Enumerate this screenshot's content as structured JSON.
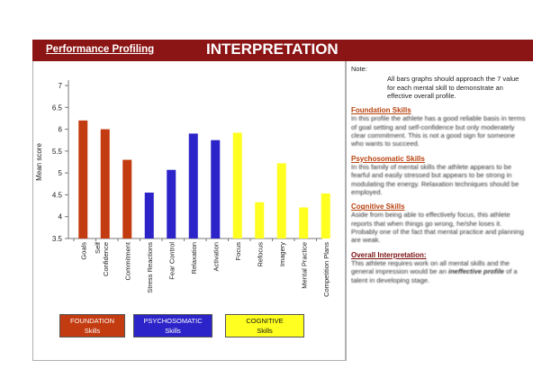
{
  "header": {
    "subtitle": "Performance Profiling",
    "title": "INTERPRETATION"
  },
  "chart_data": {
    "type": "bar",
    "ylabel": "Mean score",
    "ylim": [
      3.5,
      7
    ],
    "yticks": [
      "3.5",
      "4",
      "4.5",
      "5",
      "5.5",
      "6",
      "6.5",
      "7"
    ],
    "grid": false,
    "categories": [
      "Goals",
      "Self Confidence",
      "Commitment",
      "Stress Reactions",
      "Fear Control",
      "Relaxation",
      "Activation",
      "Focus",
      "Refocus",
      "Imagery",
      "Mental Practice",
      "Competition Plans"
    ],
    "category_labels": [
      [
        "Goals"
      ],
      [
        "Self",
        "Confidence"
      ],
      [
        "Commitment"
      ],
      [
        "Stress Reactions"
      ],
      [
        "Fear Control"
      ],
      [
        "Relaxation"
      ],
      [
        "Activation"
      ],
      [
        "Focus"
      ],
      [
        "Refocus"
      ],
      [
        "Imagery"
      ],
      [
        "Mental Practice"
      ],
      [
        "Competition Plans"
      ]
    ],
    "values": [
      6.2,
      6.0,
      5.3,
      4.55,
      5.07,
      5.9,
      5.75,
      5.92,
      4.33,
      5.22,
      4.21,
      4.53
    ],
    "groups": [
      "foundation",
      "foundation",
      "foundation",
      "psychosomatic",
      "psychosomatic",
      "psychosomatic",
      "psychosomatic",
      "cognitive",
      "cognitive",
      "cognitive",
      "cognitive",
      "cognitive"
    ],
    "colors": {
      "foundation": "#c33b10",
      "psychosomatic": "#2c24c8",
      "cognitive": "#ffff20"
    }
  },
  "legend": {
    "foundation": [
      "FOUNDATION",
      "Skills"
    ],
    "psychosomatic": [
      "PSYCHOSOMATIC",
      "Skills"
    ],
    "cognitive": [
      "COGNITIVE",
      "Skills"
    ]
  },
  "notes": {
    "note_label": "Note:",
    "note_text": "All bars graphs should approach the 7 value for each mental skill to demonstrate an effective overall profile.",
    "sections": [
      {
        "heading": "Foundation Skills",
        "text": "In this profile the athlete has a good reliable basis in terms of goal setting and self-confidence but only moderately clear commitment. This is not a good sign for someone who wants to succeed."
      },
      {
        "heading": "Psychosomatic Skills",
        "text": "In this family of mental skills the athlete appears to be fearful and easily stressed but appears to be strong in modulating the energy. Relaxation techniques should be employed."
      },
      {
        "heading": "Cognitive Skills",
        "text": "Aside from being able to effectively focus, this athlete reports that when things go wrong, he/she loses it. Probably one of the fact that mental practice and planning are weak."
      }
    ],
    "overall": {
      "heading": "Overall Interpretation:",
      "text_before": "This athlete requires work on all mental skills and the general impression would be an",
      "text_emphasis": "ineffective profile",
      "text_after": "of a talent in developing stage."
    }
  }
}
